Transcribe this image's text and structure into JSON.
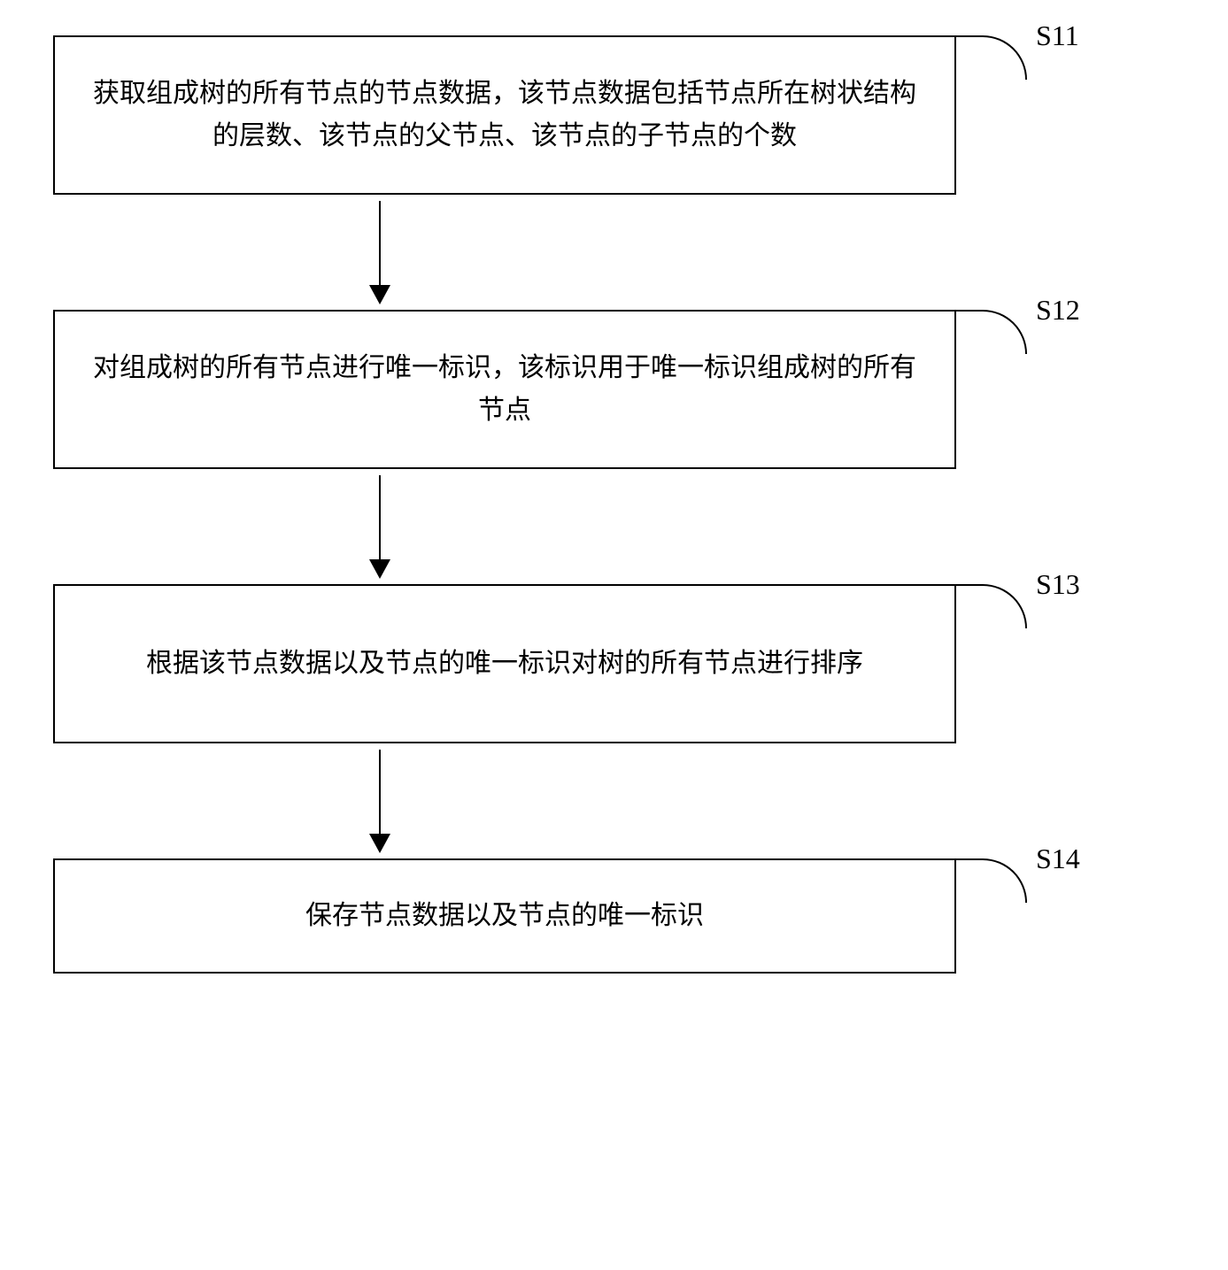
{
  "flowchart": {
    "type": "flowchart",
    "direction": "vertical",
    "box_border_color": "#000000",
    "box_border_width": 2,
    "box_background": "#ffffff",
    "text_color": "#000000",
    "font_size": 30,
    "label_font_size": 32,
    "arrow_color": "#000000",
    "arrow_line_width": 2,
    "arrow_head_width": 24,
    "arrow_head_height": 22,
    "steps": [
      {
        "id": "S11",
        "text": "获取组成树的所有节点的节点数据，该节点数据包括节点所在树状结构的层数、该节点的父节点、该节点的子节点的个数"
      },
      {
        "id": "S12",
        "text": "对组成树的所有节点进行唯一标识，该标识用于唯一标识组成树的所有节点"
      },
      {
        "id": "S13",
        "text": "根据该节点数据以及节点的唯一标识对树的所有节点进行排序"
      },
      {
        "id": "S14",
        "text": "保存节点数据以及节点的唯一标识"
      }
    ]
  }
}
